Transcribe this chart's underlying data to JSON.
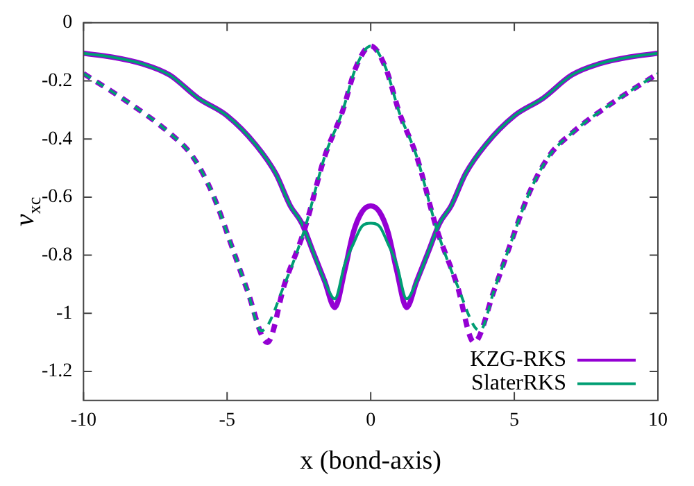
{
  "chart_data": {
    "type": "line",
    "xlabel": "x (bond-axis)",
    "ylabel": "v$_{xc}$",
    "xlim": [
      -10,
      10
    ],
    "xticks": [
      -10,
      -5,
      0,
      5,
      10
    ],
    "ylim": [
      -1.3,
      0
    ],
    "yticks": [
      -1.2,
      -1,
      -0.8,
      -0.6,
      -0.4,
      -0.2,
      0
    ],
    "grid": false,
    "legend": "bottom right",
    "marker": "none",
    "series": [
      {
        "name": "KZG-RKS",
        "color": "#9400d3",
        "line_style": "solid",
        "x": [
          -10,
          -9,
          -8,
          -7,
          -6,
          -5,
          -4,
          -3.3,
          -2.8,
          -2.4,
          -2,
          -1.6,
          -1.25,
          -0.9,
          -0.6,
          -0.3,
          0,
          0.3,
          0.6,
          0.9,
          1.25,
          1.6,
          2,
          2.4,
          2.8,
          3.3,
          4,
          5,
          6,
          7,
          8,
          9,
          10
        ],
        "values": [
          -0.105,
          -0.118,
          -0.14,
          -0.18,
          -0.26,
          -0.32,
          -0.42,
          -0.52,
          -0.63,
          -0.69,
          -0.79,
          -0.89,
          -0.98,
          -0.85,
          -0.72,
          -0.65,
          -0.63,
          -0.65,
          -0.72,
          -0.85,
          -0.98,
          -0.89,
          -0.79,
          -0.69,
          -0.63,
          -0.52,
          -0.42,
          -0.32,
          -0.26,
          -0.18,
          -0.14,
          -0.118,
          -0.105
        ]
      },
      {
        "name": "SlaterRKS",
        "color": "#009e73",
        "line_style": "solid",
        "x": [
          -10,
          -9,
          -8,
          -7,
          -6,
          -5,
          -4,
          -3.3,
          -2.8,
          -2.4,
          -2,
          -1.6,
          -1.25,
          -0.9,
          -0.6,
          -0.3,
          0,
          0.3,
          0.6,
          0.9,
          1.25,
          1.6,
          2,
          2.4,
          2.8,
          3.3,
          4,
          5,
          6,
          7,
          8,
          9,
          10
        ],
        "values": [
          -0.105,
          -0.118,
          -0.14,
          -0.18,
          -0.26,
          -0.32,
          -0.42,
          -0.52,
          -0.63,
          -0.69,
          -0.79,
          -0.89,
          -0.95,
          -0.83,
          -0.76,
          -0.7,
          -0.69,
          -0.7,
          -0.76,
          -0.83,
          -0.95,
          -0.89,
          -0.79,
          -0.69,
          -0.63,
          -0.52,
          -0.42,
          -0.32,
          -0.26,
          -0.18,
          -0.14,
          -0.118,
          -0.105
        ]
      },
      {
        "color": "#9400d3",
        "line_style": "dashed",
        "x": [
          -10,
          -8.5,
          -7,
          -6.2,
          -5.5,
          -4.8,
          -4.3,
          -3.6,
          -3,
          -2.3,
          -1.6,
          -1,
          -0.5,
          0,
          0.5,
          1,
          1.6,
          2.3,
          3,
          3.6,
          4.3,
          4.8,
          5.5,
          6.2,
          7,
          8.5,
          10
        ],
        "values": [
          -0.175,
          -0.27,
          -0.38,
          -0.46,
          -0.59,
          -0.78,
          -0.92,
          -1.1,
          -0.9,
          -0.71,
          -0.46,
          -0.31,
          -0.15,
          -0.08,
          -0.15,
          -0.31,
          -0.46,
          -0.71,
          -0.9,
          -1.1,
          -0.92,
          -0.78,
          -0.59,
          -0.46,
          -0.38,
          -0.27,
          -0.175
        ]
      },
      {
        "color": "#009e73",
        "line_style": "dashed",
        "x": [
          -10,
          -8.5,
          -7,
          -6.2,
          -5.5,
          -4.8,
          -4.3,
          -3.8,
          -3,
          -2.3,
          -1.6,
          -1,
          -0.5,
          0,
          0.5,
          1,
          1.6,
          2.3,
          3,
          3.8,
          4.3,
          4.8,
          5.5,
          6.2,
          7,
          8.5,
          10
        ],
        "values": [
          -0.175,
          -0.27,
          -0.38,
          -0.46,
          -0.59,
          -0.78,
          -0.92,
          -1.06,
          -0.9,
          -0.71,
          -0.46,
          -0.31,
          -0.15,
          -0.08,
          -0.15,
          -0.31,
          -0.46,
          -0.71,
          -0.9,
          -1.06,
          -0.92,
          -0.78,
          -0.59,
          -0.46,
          -0.38,
          -0.27,
          -0.175
        ]
      }
    ]
  }
}
